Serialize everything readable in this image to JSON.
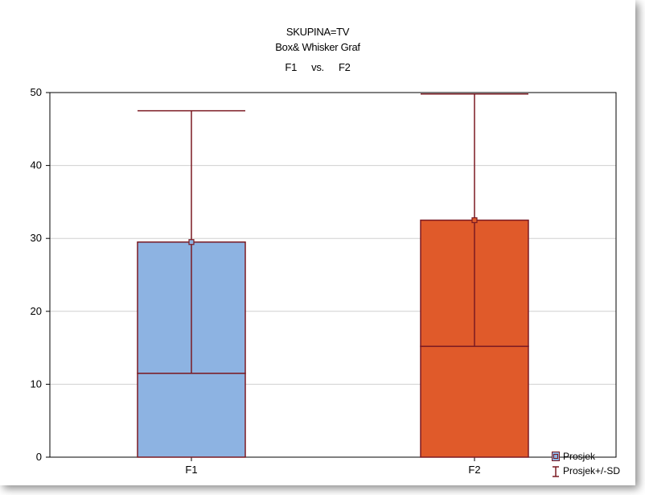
{
  "chart_data": {
    "type": "box",
    "title_lines": [
      "SKUPINA=TV",
      "Box& Whisker Graf"
    ],
    "subtitle": {
      "left": "F1",
      "mid": "vs.",
      "right": "F2"
    },
    "xlabel": "",
    "ylabel": "",
    "ylim": [
      0,
      50
    ],
    "yticks": [
      0,
      10,
      20,
      30,
      40,
      50
    ],
    "grid": true,
    "legend_position": "bottom-right",
    "categories": [
      "F1",
      "F2"
    ],
    "boxes": [
      {
        "category": "F1",
        "mean": 29.5,
        "box_low": 11.5,
        "box_high": 29.5,
        "whisker_low": 11.5,
        "whisker_high": 47.5,
        "color": "#8DB3E2"
      },
      {
        "category": "F2",
        "mean": 32.5,
        "box_low": 15.2,
        "box_high": 32.5,
        "whisker_low": 15.2,
        "whisker_high": 49.8,
        "color": "#E05A2A"
      }
    ],
    "edge_color": "#7B1A22",
    "legend": [
      {
        "label": "Prosjek",
        "symbol": "box"
      },
      {
        "label": "Prosjek+/-SD",
        "symbol": "whisker"
      }
    ]
  }
}
